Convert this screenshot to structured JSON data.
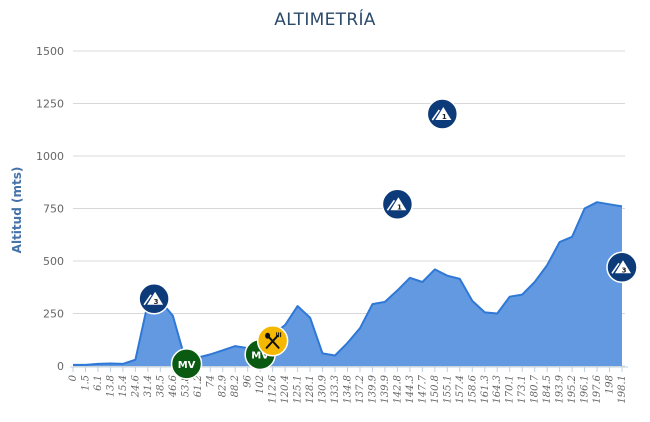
{
  "chart_data": {
    "type": "area",
    "title": "ALTIMETRÍA",
    "xlabel": "",
    "ylabel": "Altitud (mts)",
    "ylim": [
      0,
      1500
    ],
    "yticks": [
      0,
      250,
      500,
      750,
      1000,
      1250,
      1500
    ],
    "grid": true,
    "legend": null,
    "categories": [
      "0",
      "1.5",
      "6.1",
      "13.8",
      "15.4",
      "24.6",
      "31.4",
      "38.5",
      "46.6",
      "53.8",
      "61.2",
      "74",
      "82.9",
      "88.2",
      "96",
      "102",
      "112.6",
      "120.4",
      "125.1",
      "128.1",
      "130.9",
      "133.3",
      "134.8",
      "137.2",
      "139.9",
      "139.9",
      "142.8",
      "144.3",
      "147.7",
      "150.8",
      "155.1",
      "157.4",
      "158.6",
      "161.3",
      "164.3",
      "170.1",
      "173.1",
      "180.7",
      "184.5",
      "193.9",
      "195.2",
      "196.1",
      "197.6",
      "198",
      "198.1"
    ],
    "series": [
      {
        "name": "Altitud",
        "color": "#4a89dc",
        "values": [
          5,
          5,
          10,
          12,
          10,
          30,
          300,
          310,
          240,
          30,
          40,
          55,
          75,
          95,
          85,
          85,
          150,
          195,
          285,
          230,
          60,
          50,
          110,
          180,
          295,
          305,
          360,
          420,
          400,
          460,
          430,
          415,
          310,
          255,
          250,
          330,
          340,
          400,
          480,
          590,
          615,
          750,
          780,
          770,
          760
        ]
      }
    ],
    "markers": [
      {
        "type": "mountain",
        "category": "3",
        "x_index": 6.5,
        "value": 320,
        "color": "#0d3b7a"
      },
      {
        "type": "mv",
        "label": "MV",
        "x_index": 9.1,
        "value": 10,
        "color": "#0b5a12"
      },
      {
        "type": "mv",
        "label": "MV",
        "x_index": 15.0,
        "value": 55,
        "color": "#0b5a12"
      },
      {
        "type": "food",
        "x_index": 16.0,
        "value": 120,
        "color": "#f5b800"
      },
      {
        "type": "mountain",
        "category": "1",
        "x_index": 26.0,
        "value": 770,
        "color": "#0d3b7a"
      },
      {
        "type": "mountain",
        "category": "1",
        "x_index": 29.6,
        "value": 1200,
        "color": "#0d3b7a"
      },
      {
        "type": "mountain",
        "category": "3",
        "x_index": 44.0,
        "value": 470,
        "color": "#0d3b7a"
      }
    ]
  }
}
